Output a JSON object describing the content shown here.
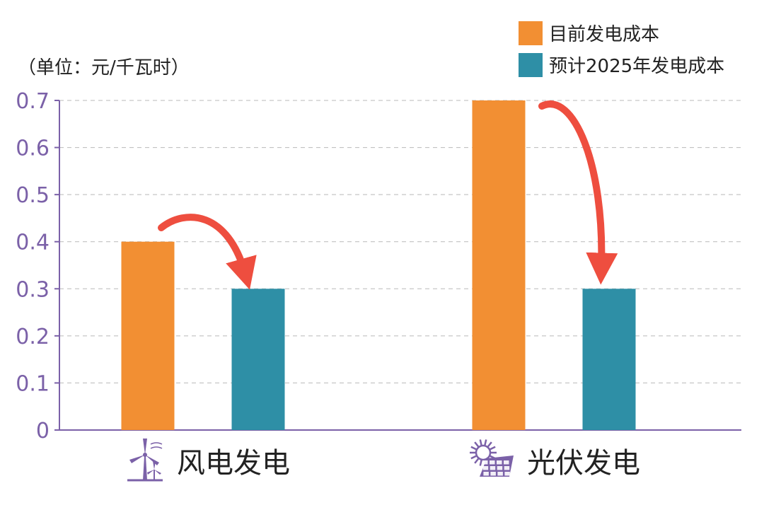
{
  "chart_data": {
    "type": "bar",
    "unit_label": "（单位：元/千瓦时）",
    "categories": [
      "风电发电",
      "光伏发电"
    ],
    "category_icons": [
      "wind-turbine-icon",
      "solar-panel-icon"
    ],
    "series": [
      {
        "name": "目前发电成本",
        "values": [
          0.4,
          0.7
        ]
      },
      {
        "name": "预计2025年发电成本",
        "values": [
          0.3,
          0.3
        ]
      }
    ],
    "y_ticks": [
      "0",
      "0.1",
      "0.2",
      "0.3",
      "0.4",
      "0.5",
      "0.6",
      "0.7"
    ],
    "ylim": [
      0,
      0.7
    ],
    "grid": true,
    "legend_position": "top-right",
    "annotations": [
      "red-curved-arrow-from-current-to-2025-wind",
      "red-curved-arrow-from-current-to-2025-solar"
    ]
  },
  "colors": {
    "current": "#F28F33",
    "forecast": "#2E8FA6",
    "axis": "#7B61A8",
    "grid": "#B9B9B9",
    "arrow": "#EE4E3F",
    "text": "#222222"
  }
}
